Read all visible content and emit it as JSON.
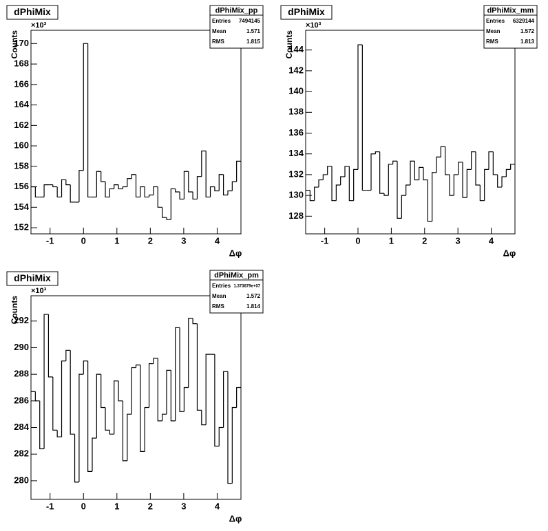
{
  "chart_data": [
    {
      "type": "histogram",
      "title": "dPhiMix",
      "x_label": "Δφ",
      "y_label": "Counts",
      "y_multiplier": "×10³",
      "stats": {
        "name": "dPhiMix_pp",
        "entries_label": "Entries",
        "entries": "7494145",
        "mean_label": "Mean",
        "mean": "1.571",
        "rms_label": "RMS",
        "rms": "1.815"
      },
      "color": "#000000",
      "bins": [
        -1.571,
        -1.44,
        -1.309,
        -1.178,
        -1.047,
        -0.916,
        -0.785,
        -0.654,
        -0.524,
        -0.393,
        -0.262,
        -0.131,
        0,
        0.131,
        0.262,
        0.393,
        0.524,
        0.654,
        0.785,
        0.916,
        1.047,
        1.178,
        1.309,
        1.44,
        1.571,
        1.702,
        1.833,
        1.963,
        2.094,
        2.225,
        2.356,
        2.487,
        2.618,
        2.749,
        2.88,
        3.011,
        3.142,
        3.272,
        3.403,
        3.534,
        3.665,
        3.796,
        3.927,
        4.058,
        4.189,
        4.32,
        4.451,
        4.581,
        4.712
      ],
      "values": [
        156,
        155,
        155,
        156.2,
        156.2,
        156,
        155,
        156.7,
        156.2,
        154.5,
        154.5,
        157.6,
        170,
        155,
        155,
        157.5,
        156.5,
        155,
        155.8,
        156.2,
        155.8,
        156,
        156.8,
        157.2,
        155,
        156,
        155,
        155.2,
        156,
        154,
        153,
        152.8,
        155.8,
        155.5,
        154.8,
        157.5,
        155.5,
        154.8,
        157,
        159.5,
        155,
        156,
        155.6,
        157.2,
        155.2,
        155.6,
        156.5,
        158.5
      ],
      "xlim": [
        -1.571,
        4.712
      ],
      "xticks": [
        -1,
        0,
        1,
        2,
        3,
        4
      ],
      "ylim": [
        151.4,
        171.3
      ],
      "yticks": [
        152,
        154,
        156,
        158,
        160,
        162,
        164,
        166,
        168,
        170
      ]
    },
    {
      "type": "histogram",
      "title": "dPhiMix",
      "x_label": "Δφ",
      "y_label": "Counts",
      "y_multiplier": "×10³",
      "stats": {
        "name": "dPhiMix_mm",
        "entries_label": "Entries",
        "entries": "6329144",
        "mean_label": "Mean",
        "mean": "1.572",
        "rms_label": "RMS",
        "rms": "1.813"
      },
      "color": "#000000",
      "bins": [
        -1.571,
        -1.44,
        -1.309,
        -1.178,
        -1.047,
        -0.916,
        -0.785,
        -0.654,
        -0.524,
        -0.393,
        -0.262,
        -0.131,
        0,
        0.131,
        0.262,
        0.393,
        0.524,
        0.654,
        0.785,
        0.916,
        1.047,
        1.178,
        1.309,
        1.44,
        1.571,
        1.702,
        1.833,
        1.963,
        2.094,
        2.225,
        2.356,
        2.487,
        2.618,
        2.749,
        2.88,
        3.011,
        3.142,
        3.272,
        3.403,
        3.534,
        3.665,
        3.796,
        3.927,
        4.058,
        4.189,
        4.32,
        4.451,
        4.581,
        4.712
      ],
      "values": [
        130.5,
        129.5,
        130.8,
        131.5,
        132,
        132.8,
        129.5,
        131,
        131.8,
        132.8,
        129.5,
        132.5,
        144.5,
        130.5,
        130.5,
        134,
        134.2,
        130.2,
        130,
        133,
        133.3,
        127.8,
        130,
        131,
        133.3,
        131.5,
        132.7,
        131.5,
        127.5,
        132.2,
        133.7,
        134.7,
        132,
        130,
        132,
        133.2,
        129.8,
        132.5,
        134.2,
        131,
        129.5,
        132.5,
        134.2,
        132,
        130.8,
        131.8,
        132.5,
        133
      ],
      "xlim": [
        -1.571,
        4.712
      ],
      "xticks": [
        -1,
        0,
        1,
        2,
        3,
        4
      ],
      "ylim": [
        126.3,
        145.9
      ],
      "yticks": [
        128,
        130,
        132,
        134,
        136,
        138,
        140,
        142,
        144
      ]
    },
    {
      "type": "histogram",
      "title": "dPhiMix",
      "x_label": "Δφ",
      "y_label": "Counts",
      "y_multiplier": "×10³",
      "stats": {
        "name": "dPhiMix_pm",
        "entries_label": "Entries",
        "entries": "1.373879e+07",
        "mean_label": "Mean",
        "mean": "1.572",
        "rms_label": "RMS",
        "rms": "1.814"
      },
      "color": "#000000",
      "bins": [
        -1.571,
        -1.44,
        -1.309,
        -1.178,
        -1.047,
        -0.916,
        -0.785,
        -0.654,
        -0.524,
        -0.393,
        -0.262,
        -0.131,
        0,
        0.131,
        0.262,
        0.393,
        0.524,
        0.654,
        0.785,
        0.916,
        1.047,
        1.178,
        1.309,
        1.44,
        1.571,
        1.702,
        1.833,
        1.963,
        2.094,
        2.225,
        2.356,
        2.487,
        2.618,
        2.749,
        2.88,
        3.011,
        3.142,
        3.272,
        3.403,
        3.534,
        3.665,
        3.796,
        3.927,
        4.058,
        4.189,
        4.32,
        4.451,
        4.581,
        4.712
      ],
      "values": [
        286.7,
        286,
        282.4,
        292.5,
        287.8,
        283.8,
        283.3,
        289,
        289.8,
        283.5,
        279.9,
        288,
        289,
        280.7,
        283.2,
        288,
        285.5,
        283.8,
        283.5,
        287.5,
        286,
        281.5,
        285,
        288.5,
        288.7,
        282.2,
        285.5,
        288.8,
        289.2,
        284.5,
        285,
        288.3,
        284.5,
        291.5,
        285.2,
        287,
        292.2,
        291.8,
        285.3,
        284.2,
        289.5,
        289.5,
        282.6,
        284,
        288.2,
        279.8,
        285.5,
        287
      ],
      "xlim": [
        -1.571,
        4.712
      ],
      "xticks": [
        -1,
        0,
        1,
        2,
        3,
        4
      ],
      "ylim": [
        278.6,
        293.9
      ],
      "yticks": [
        280,
        282,
        284,
        286,
        288,
        290,
        292
      ]
    }
  ]
}
